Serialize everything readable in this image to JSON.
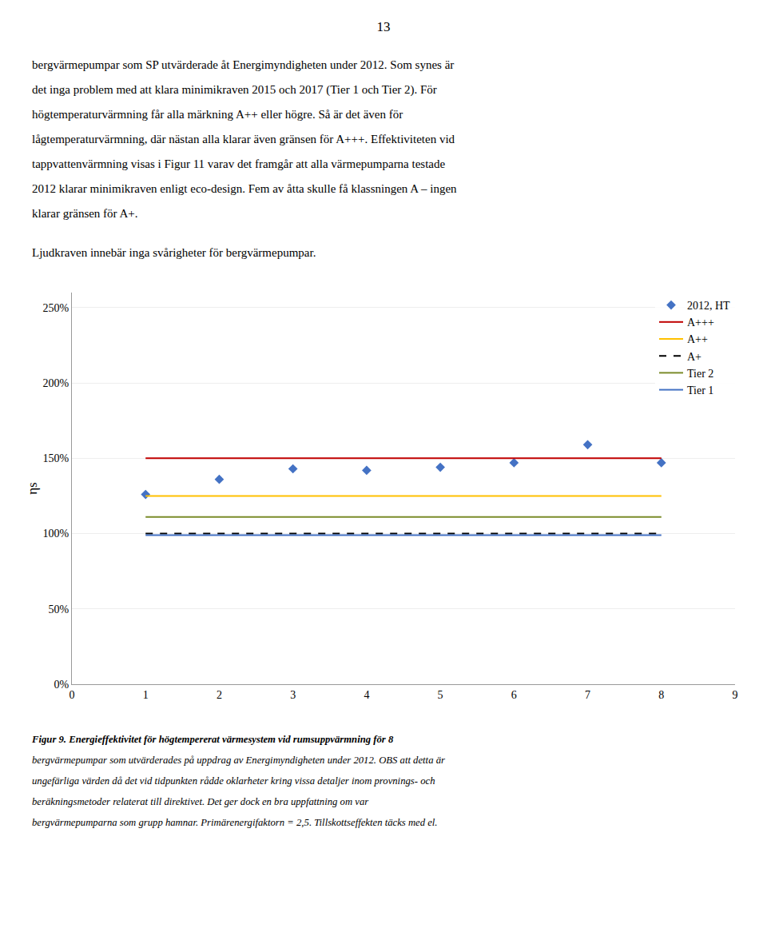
{
  "chart_data": {
    "type": "scatter",
    "page_number": "13",
    "paragraphs": [
      [
        "bergvärmepumpar som SP utvärderade åt Energimyndigheten under 2012. Som synes är",
        "det inga problem med att klara minimikraven 2015 och 2017 (Tier 1 och Tier 2). För",
        "högtemperaturvärmning får alla märkning A++ eller högre. Så är det även för",
        "lågtemperaturvärmning, där nästan alla klarar även gränsen för A+++. Effektiviteten vid",
        "tappvattenvärmning visas i Figur 11 varav det framgår att alla värmepumparna testade",
        "2012 klarar minimikraven enligt eco-design. Fem av åtta skulle få klassningen A – ingen",
        "klarar gränsen för A+."
      ],
      [
        "Ljudkraven innebär inga svårigheter för bergvärmepumpar."
      ]
    ],
    "caption": [
      "Figur 9. Energieffektivitet för högtempererat värmesystem vid rumsuppvärmning för 8",
      "bergvärmepumpar som utvärderades på uppdrag av Energimyndigheten under 2012. OBS att detta är",
      "ungefärliga värden då det vid tidpunkten rådde oklarheter kring vissa detaljer inom provnings- och",
      "beräkningsmetoder relaterat till direktivet. Det ger dock en bra uppfattning om var",
      "bergvärmepumparna som grupp hamnar. Primärenergifaktorn = 2,5. Tillskottseffekten täcks med el."
    ],
    "ylabel": "ηs",
    "xlim": [
      0,
      9
    ],
    "ylim": [
      0,
      260
    ],
    "xticks": [
      0,
      1,
      2,
      3,
      4,
      5,
      6,
      7,
      8,
      9
    ],
    "yticks": [
      {
        "value": 0,
        "label": "0%"
      },
      {
        "value": 50,
        "label": "50%"
      },
      {
        "value": 100,
        "label": "100%"
      },
      {
        "value": 150,
        "label": "150%"
      },
      {
        "value": 200,
        "label": "200%"
      },
      {
        "value": 250,
        "label": "250%"
      }
    ],
    "grid": "y",
    "legend": "upper right",
    "series": [
      {
        "name": "2012, HT",
        "type": "scatter",
        "marker": "diamond",
        "color": "#4472C4",
        "x": [
          1,
          2,
          3,
          4,
          5,
          6,
          7,
          8
        ],
        "values": [
          126,
          136,
          143,
          142,
          144,
          147,
          159,
          147
        ]
      },
      {
        "name": "A+++",
        "type": "line",
        "line_style": "solid",
        "color": "#C00000",
        "x": [
          1,
          8
        ],
        "values": [
          150,
          150
        ]
      },
      {
        "name": "A++",
        "type": "line",
        "line_style": "solid",
        "color": "#FFC000",
        "x": [
          1,
          8
        ],
        "values": [
          125,
          125
        ]
      },
      {
        "name": "A+",
        "type": "line",
        "line_style": "dashed",
        "color": "#000000",
        "x": [
          1,
          8
        ],
        "values": [
          100,
          100
        ]
      },
      {
        "name": "Tier 2",
        "type": "line",
        "line_style": "solid",
        "color": "#7B8C2A",
        "x": [
          1,
          8
        ],
        "values": [
          111,
          111
        ]
      },
      {
        "name": "Tier 1",
        "type": "line",
        "line_style": "solid",
        "color": "#4472C4",
        "x": [
          1,
          8
        ],
        "values": [
          99,
          99
        ]
      }
    ]
  }
}
